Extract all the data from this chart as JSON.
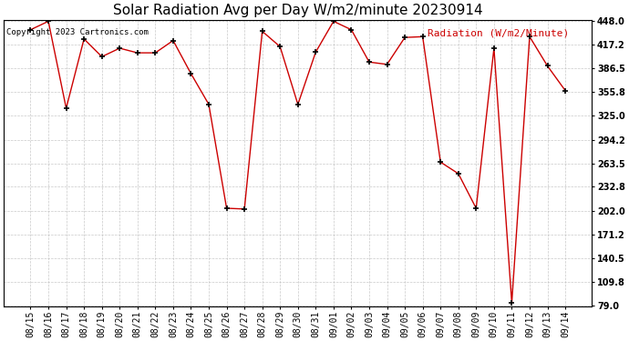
{
  "title": "Solar Radiation Avg per Day W/m2/minute 20230914",
  "copyright_text": "Copyright 2023 Cartronics.com",
  "legend_label": "Radiation (W/m2/Minute)",
  "dates": [
    "08/15",
    "08/16",
    "08/17",
    "08/18",
    "08/19",
    "08/20",
    "08/21",
    "08/22",
    "08/23",
    "08/24",
    "08/25",
    "08/26",
    "08/27",
    "08/28",
    "08/29",
    "08/30",
    "08/31",
    "09/01",
    "09/02",
    "09/03",
    "09/04",
    "09/05",
    "09/06",
    "09/07",
    "09/08",
    "09/09",
    "09/10",
    "09/11",
    "09/12",
    "09/13",
    "09/14"
  ],
  "values": [
    437.0,
    448.0,
    335.0,
    425.0,
    402.0,
    413.0,
    407.0,
    407.0,
    423.0,
    380.0,
    340.0,
    205.0,
    204.0,
    435.0,
    415.0,
    340.0,
    408.0,
    448.0,
    437.0,
    395.0,
    392.0,
    427.0,
    428.0,
    265.0,
    250.0,
    205.0,
    413.0,
    82.0,
    428.0,
    390.0,
    358.0
  ],
  "line_color": "#cc0000",
  "marker_color": "#000000",
  "bg_color": "#ffffff",
  "grid_color": "#bbbbbb",
  "yticks": [
    79.0,
    109.8,
    140.5,
    171.2,
    202.0,
    232.8,
    263.5,
    294.2,
    325.0,
    355.8,
    386.5,
    417.2,
    448.0
  ],
  "ylim_min": 79.0,
  "ylim_max": 448.0,
  "title_fontsize": 11,
  "tick_fontsize": 7,
  "legend_fontsize": 8,
  "copyright_fontsize": 6.5
}
